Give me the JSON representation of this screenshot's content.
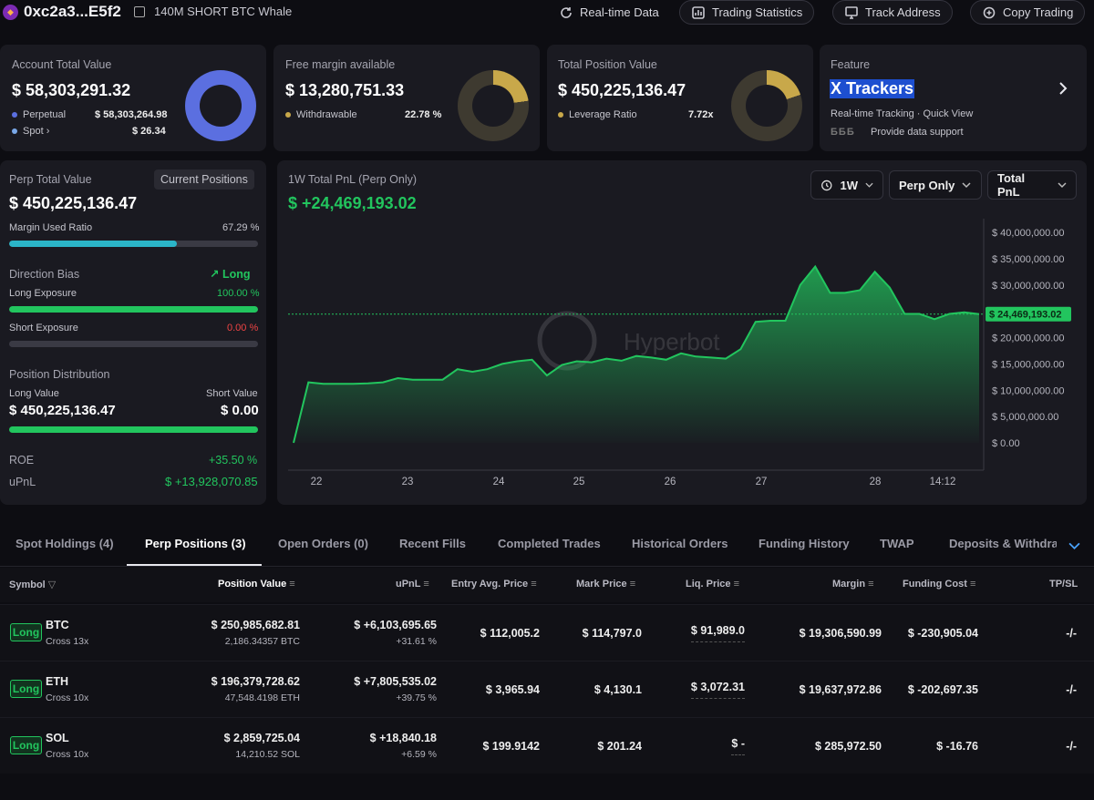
{
  "header": {
    "address": "0xc2a3...E5f2",
    "tagline": "140M SHORT BTC Whale",
    "buttons": [
      "Real-time Data",
      "Trading Statistics",
      "Track Address",
      "Copy Trading"
    ]
  },
  "cards": {
    "account": {
      "label": "Account Total Value",
      "value": "$ 58,303,291.32",
      "row1_label": "Perpetual",
      "row1_value": "$ 58,303,264.98",
      "row2_label": "Spot",
      "row2_value": "$ 26.34",
      "donut_color": "#5b6fe0"
    },
    "margin": {
      "label": "Free margin available",
      "value": "$ 13,280,751.33",
      "row1_label": "Withdrawable",
      "row1_value": "22.78 %",
      "fraction": 0.2278,
      "donut_color": "#c8a84a"
    },
    "position": {
      "label": "Total Position Value",
      "value": "$ 450,225,136.47",
      "row1_label": "Leverage Ratio",
      "row1_value": "7.72x",
      "donut_color": "#c8a84a"
    },
    "feature": {
      "label": "Feature",
      "title": "X Trackers",
      "subtitle": "Real-time Tracking · Quick View",
      "support": "Provide data support",
      "brand": "БББ"
    }
  },
  "perp": {
    "title": "Perp Total Value",
    "button": "Current Positions",
    "value": "$ 450,225,136.47",
    "margin_label": "Margin Used Ratio",
    "margin_value": "67.29 %",
    "margin_fraction": 0.6729,
    "bias_label": "Direction Bias",
    "bias_value": "Long",
    "long_label": "Long Exposure",
    "long_value": "100.00 %",
    "long_fraction": 1.0,
    "short_label": "Short Exposure",
    "short_value": "0.00 %",
    "short_fraction": 0.0,
    "dist_label": "Position Distribution",
    "long_value_label": "Long Value",
    "short_value_label": "Short Value",
    "long_value_amount": "$ 450,225,136.47",
    "short_value_amount": "$ 0.00",
    "roe_label": "ROE",
    "roe_value": "+35.50 %",
    "upnl_label": "uPnL",
    "upnl_value": "$ +13,928,070.85"
  },
  "pnl": {
    "title": "1W Total PnL (Perp Only)",
    "value": "$ +24,469,193.02",
    "filters": [
      "1W",
      "Perp Only",
      "Total PnL"
    ],
    "watermark": "Hyperbot"
  },
  "chart_data": {
    "type": "area",
    "title": "1W Total PnL (Perp Only)",
    "x_labels": [
      "22",
      "23",
      "24",
      "25",
      "26",
      "27",
      "28",
      "14:12"
    ],
    "y_ticks": [
      "$ 40,000,000.00",
      "$ 35,000,000.00",
      "$ 30,000,000.00",
      "$ 25,000,000.00",
      "$ 20,000,000.00",
      "$ 15,000,000.00",
      "$ 10,000,000.00",
      "$ 5,000,000.00",
      "$ 0.00"
    ],
    "ylim": [
      0,
      40000000
    ],
    "current_label": "$ 24,469,193.02",
    "current_value": 24469193.02,
    "series": [
      {
        "values": [
          0,
          11500000,
          11200000,
          11200000,
          11200000,
          11300000,
          11500000,
          12300000,
          12000000,
          12000000,
          12000000,
          14000000,
          13500000,
          14000000,
          15000000,
          15500000,
          15800000,
          12800000,
          14800000,
          15500000,
          15300000,
          16000000,
          15600000,
          16500000,
          16200000,
          15800000,
          17000000,
          16400000,
          16200000,
          16000000,
          17800000,
          23000000,
          23200000,
          23200000,
          30000000,
          33500000,
          28500000,
          28500000,
          29000000,
          32500000,
          29500000,
          24500000,
          24500000,
          23500000,
          24500000,
          24800000,
          24469193
        ]
      }
    ],
    "color": "#22c55e",
    "grid": false
  },
  "tabs": [
    "Spot Holdings (4)",
    "Perp Positions (3)",
    "Open Orders (0)",
    "Recent Fills",
    "Completed Trades",
    "Historical Orders",
    "Funding History",
    "TWAP",
    "Deposits & Withdraw"
  ],
  "table": {
    "headers": [
      "Symbol",
      "Position Value",
      "uPnL",
      "Entry Avg. Price",
      "Mark Price",
      "Liq. Price",
      "Margin",
      "Funding Cost",
      "TP/SL"
    ],
    "rows": [
      {
        "side": "Long",
        "symbol": "BTC",
        "mode": "Cross 13x",
        "value": "$ 250,985,682.81",
        "size": "2,186.34357 BTC",
        "upnl": "$ +6,103,695.65",
        "upnl_pct": "+31.61 %",
        "entry": "$ 112,005.2",
        "mark": "$ 114,797.0",
        "liq": "$ 91,989.0",
        "margin": "$ 19,306,590.99",
        "funding": "$ -230,905.04",
        "tpsl": "-/-"
      },
      {
        "side": "Long",
        "symbol": "ETH",
        "mode": "Cross 10x",
        "value": "$ 196,379,728.62",
        "size": "47,548.4198 ETH",
        "upnl": "$ +7,805,535.02",
        "upnl_pct": "+39.75 %",
        "entry": "$ 3,965.94",
        "mark": "$ 4,130.1",
        "liq": "$ 3,072.31",
        "margin": "$ 19,637,972.86",
        "funding": "$ -202,697.35",
        "tpsl": "-/-"
      },
      {
        "side": "Long",
        "symbol": "SOL",
        "mode": "Cross 10x",
        "value": "$ 2,859,725.04",
        "size": "14,210.52 SOL",
        "upnl": "$ +18,840.18",
        "upnl_pct": "+6.59 %",
        "entry": "$ 199.9142",
        "mark": "$ 201.24",
        "liq": "$ -",
        "margin": "$ 285,972.50",
        "funding": "$ -16.76",
        "tpsl": "-/-"
      }
    ]
  }
}
